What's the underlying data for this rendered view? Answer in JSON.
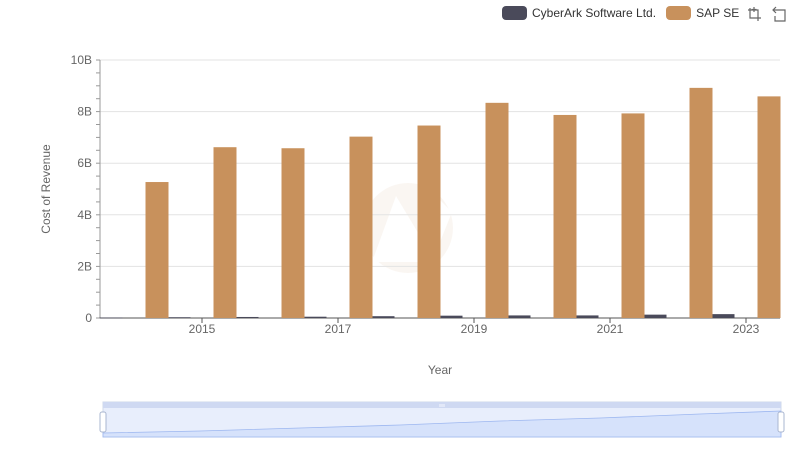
{
  "legend": [
    {
      "name": "CyberArk Software Ltd.",
      "color": "#4a4a5a"
    },
    {
      "name": "SAP SE",
      "color": "#c8915c"
    }
  ],
  "toolbox": {
    "zoom_icon": "zoom-icon",
    "restore_icon": "restore-icon"
  },
  "chart_data": {
    "type": "bar",
    "categories": [
      "2014",
      "2015",
      "2016",
      "2017",
      "2018",
      "2019",
      "2020",
      "2021",
      "2022",
      "2023"
    ],
    "x_tick_labels": [
      "2015",
      "2017",
      "2019",
      "2021",
      "2023"
    ],
    "y_tick_labels": [
      "0",
      "2B",
      "4B",
      "6B",
      "8B",
      "10B"
    ],
    "series": [
      {
        "name": "CyberArk Software Ltd.",
        "color": "#4a4a5a",
        "values": [
          0.02,
          0.03,
          0.04,
          0.05,
          0.07,
          0.09,
          0.1,
          0.1,
          0.13,
          0.15
        ]
      },
      {
        "name": "SAP SE",
        "color": "#c8915c",
        "values": [
          5.27,
          6.62,
          6.58,
          7.03,
          7.46,
          8.34,
          7.87,
          7.93,
          8.92,
          8.59
        ]
      }
    ],
    "xlabel": "Year",
    "ylabel": "Cost of Revenue",
    "ylim": [
      0,
      10
    ],
    "y_unit": "billions",
    "grid": true,
    "legend_position": "top-right",
    "datazoom": {
      "range": [
        0,
        100
      ]
    }
  }
}
